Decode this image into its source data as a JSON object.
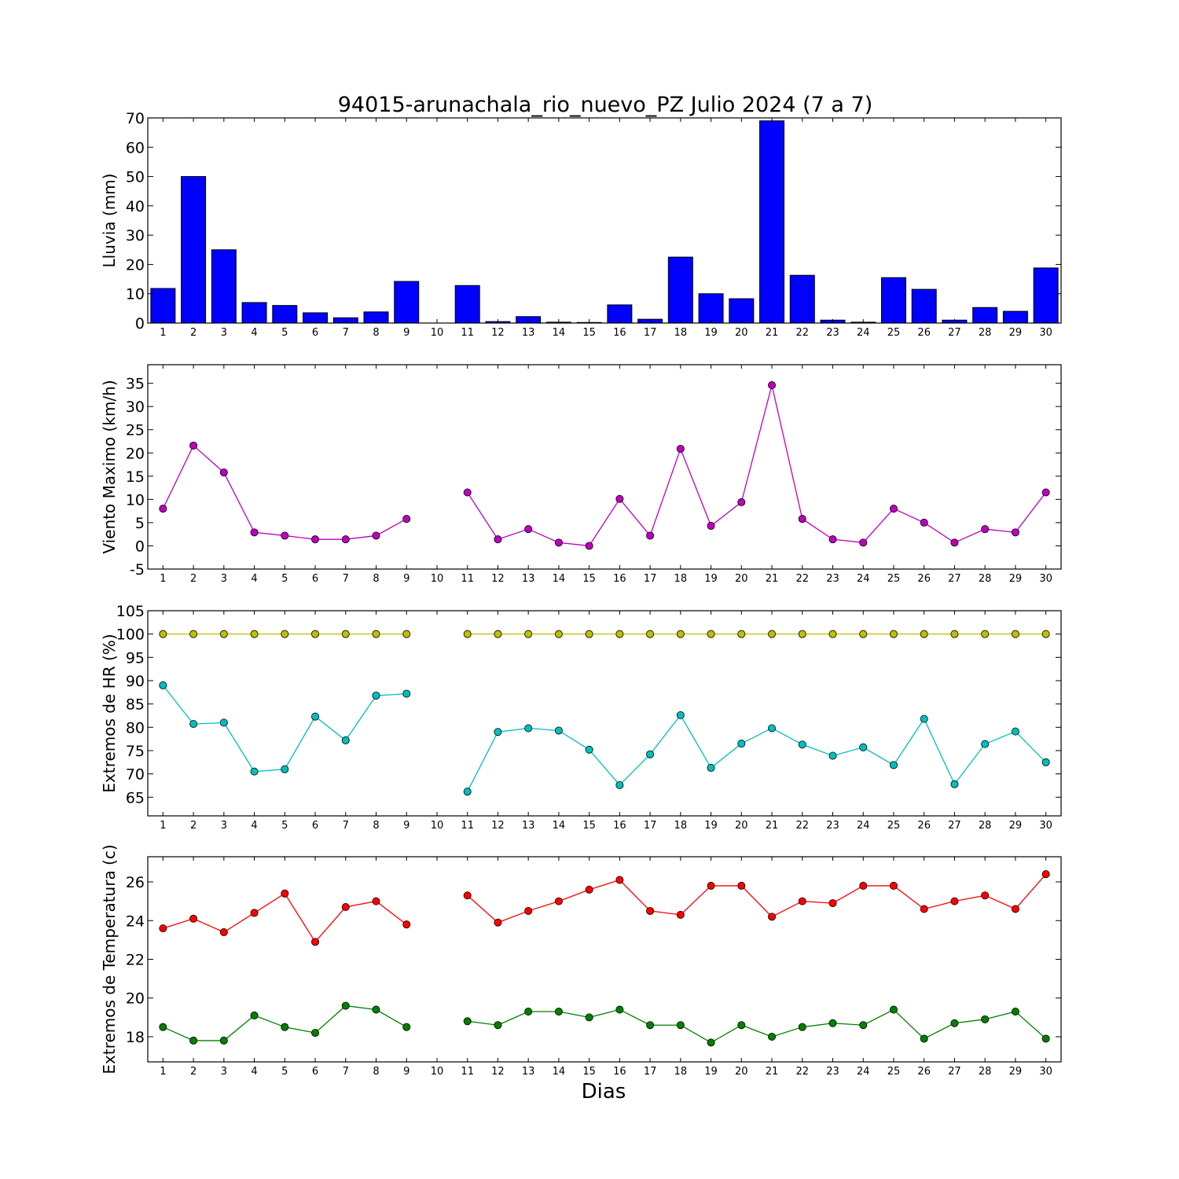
{
  "title": "94015-arunachala_rio_nuevo_PZ Julio 2024  (7 a 7)",
  "xlabel": "Dias",
  "chart_data": [
    {
      "type": "bar",
      "ylabel": "Lluvia (mm)",
      "ylim": [
        0,
        70
      ],
      "yticks": [
        0,
        10,
        20,
        30,
        40,
        50,
        60,
        70
      ],
      "categories": [
        1,
        2,
        3,
        4,
        5,
        6,
        7,
        8,
        9,
        10,
        11,
        12,
        13,
        14,
        15,
        16,
        17,
        18,
        19,
        20,
        21,
        22,
        23,
        24,
        25,
        26,
        27,
        28,
        29,
        30
      ],
      "series": [
        {
          "color": "#0000ff",
          "values": [
            11.8,
            50.0,
            25.0,
            7.0,
            6.0,
            3.5,
            1.8,
            3.8,
            14.2,
            0.0,
            12.8,
            0.5,
            2.2,
            0.3,
            0.2,
            6.2,
            1.3,
            22.5,
            10.0,
            8.3,
            69.0,
            16.3,
            1.0,
            0.3,
            15.5,
            11.5,
            1.0,
            5.3,
            4.0,
            18.8
          ]
        }
      ]
    },
    {
      "type": "line",
      "ylabel": "Viento Maximo (km/h)",
      "ylim": [
        -5,
        39
      ],
      "yticks": [
        -5,
        0,
        5,
        10,
        15,
        20,
        25,
        30,
        35
      ],
      "x": [
        1,
        2,
        3,
        4,
        5,
        6,
        7,
        8,
        9,
        10,
        11,
        12,
        13,
        14,
        15,
        16,
        17,
        18,
        19,
        20,
        21,
        22,
        23,
        24,
        25,
        26,
        27,
        28,
        29,
        30
      ],
      "series": [
        {
          "color": "#bf00bf",
          "values": [
            8.0,
            21.6,
            15.8,
            2.9,
            2.2,
            1.4,
            1.4,
            2.2,
            5.8,
            null,
            11.5,
            1.4,
            3.6,
            0.7,
            0.0,
            10.1,
            2.2,
            20.9,
            4.3,
            9.4,
            34.6,
            5.8,
            1.4,
            0.7,
            8.0,
            5.0,
            0.7,
            3.6,
            2.9,
            11.5
          ]
        }
      ]
    },
    {
      "type": "line",
      "ylabel": "Extremos de HR (%)",
      "ylim": [
        61,
        105
      ],
      "yticks": [
        65,
        70,
        75,
        80,
        85,
        90,
        95,
        100,
        105
      ],
      "x": [
        1,
        2,
        3,
        4,
        5,
        6,
        7,
        8,
        9,
        10,
        11,
        12,
        13,
        14,
        15,
        16,
        17,
        18,
        19,
        20,
        21,
        22,
        23,
        24,
        25,
        26,
        27,
        28,
        29,
        30
      ],
      "series": [
        {
          "color": "#bfbf00",
          "values": [
            100,
            100,
            100,
            100,
            100,
            100,
            100,
            100,
            100,
            null,
            100,
            100,
            100,
            100,
            100,
            100,
            100,
            100,
            100,
            100,
            100,
            100,
            100,
            100,
            100,
            100,
            100,
            100,
            100,
            100
          ]
        },
        {
          "color": "#00bfbf",
          "values": [
            89,
            80.7,
            81,
            70.5,
            71,
            82.3,
            77.2,
            86.8,
            87.2,
            null,
            66.2,
            79,
            79.8,
            79.3,
            75.2,
            67.6,
            74.2,
            82.6,
            71.3,
            76.5,
            79.8,
            76.3,
            73.9,
            75.7,
            71.9,
            81.8,
            67.8,
            76.4,
            79.1,
            72.5
          ]
        }
      ]
    },
    {
      "type": "line",
      "ylabel": "Extremos de Temperatura (c)",
      "ylim": [
        16.7,
        27.3
      ],
      "yticks": [
        18,
        20,
        22,
        24,
        26
      ],
      "x": [
        1,
        2,
        3,
        4,
        5,
        6,
        7,
        8,
        9,
        10,
        11,
        12,
        13,
        14,
        15,
        16,
        17,
        18,
        19,
        20,
        21,
        22,
        23,
        24,
        25,
        26,
        27,
        28,
        29,
        30
      ],
      "series": [
        {
          "color": "#ff0000",
          "values": [
            23.6,
            24.1,
            23.4,
            24.4,
            25.4,
            22.9,
            24.7,
            25.0,
            23.8,
            null,
            25.3,
            23.9,
            24.5,
            25.0,
            25.6,
            26.1,
            24.5,
            24.3,
            25.8,
            25.8,
            24.2,
            25.0,
            24.9,
            25.8,
            25.8,
            24.6,
            25.0,
            25.3,
            24.6,
            26.4
          ]
        },
        {
          "color": "#008000",
          "values": [
            18.5,
            17.8,
            17.8,
            19.1,
            18.5,
            18.2,
            19.6,
            19.4,
            18.5,
            null,
            18.8,
            18.6,
            19.3,
            19.3,
            19.0,
            19.4,
            18.6,
            18.6,
            17.7,
            18.6,
            18.0,
            18.5,
            18.7,
            18.6,
            19.4,
            17.9,
            18.7,
            18.9,
            19.3,
            17.9
          ]
        }
      ]
    }
  ]
}
